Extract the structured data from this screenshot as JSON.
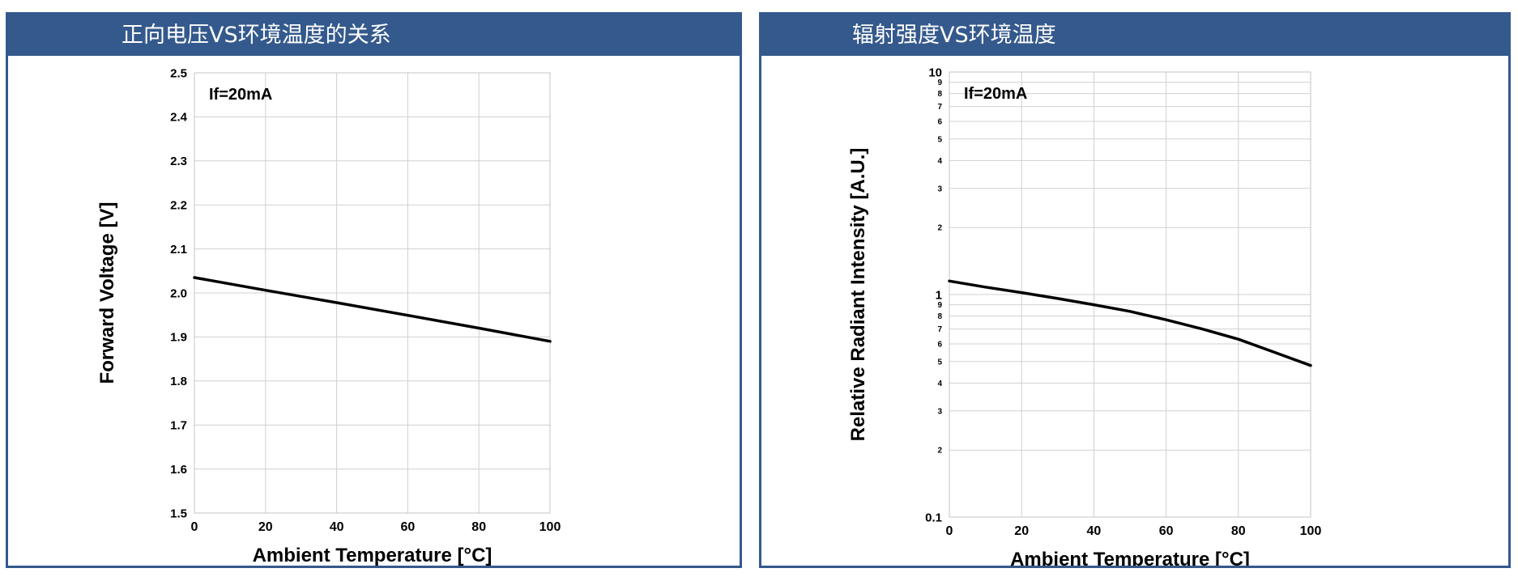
{
  "charts": [
    {
      "header": "正向电压VS环境温度的关系",
      "chart_data": {
        "type": "line",
        "title": "",
        "annotation": "If=20mA",
        "xlabel": "Ambient Temperature [°C]",
        "ylabel": "Forward Voltage [V]",
        "xlim": [
          0,
          100
        ],
        "ylim": [
          1.5,
          2.5
        ],
        "yscale": "linear",
        "grid": true,
        "x_ticks": [
          "0",
          "20",
          "40",
          "60",
          "80",
          "100"
        ],
        "y_ticks": [
          "1.5",
          "1.6",
          "1.7",
          "1.8",
          "1.9",
          "2.0",
          "2.1",
          "2.2",
          "2.3",
          "2.4",
          "2.5"
        ],
        "series": [
          {
            "x": [
              0,
              20,
              40,
              60,
              80,
              100
            ],
            "y": [
              2.035,
              2.006,
              1.978,
              1.949,
              1.92,
              1.89
            ],
            "color": "#000000"
          }
        ]
      }
    },
    {
      "header": "辐射强度VS环境温度",
      "chart_data": {
        "type": "line",
        "title": "",
        "annotation": "If=20mA",
        "xlabel": "Ambient Temperature [°C]",
        "ylabel": "Relative Radiant Intensity [A.U.]",
        "xlim": [
          0,
          100
        ],
        "ylim": [
          0.1,
          10
        ],
        "yscale": "log",
        "grid": true,
        "x_ticks": [
          "0",
          "20",
          "40",
          "60",
          "80",
          "100"
        ],
        "y_ticks": [
          {
            "v": 0.1,
            "t": "0.1",
            "major": true
          },
          {
            "v": 0.2,
            "t": "2"
          },
          {
            "v": 0.3,
            "t": "3"
          },
          {
            "v": 0.4,
            "t": "4"
          },
          {
            "v": 0.5,
            "t": "5"
          },
          {
            "v": 0.6,
            "t": "6"
          },
          {
            "v": 0.7,
            "t": "7"
          },
          {
            "v": 0.8,
            "t": "8"
          },
          {
            "v": 0.9,
            "t": "9"
          },
          {
            "v": 1,
            "t": "1",
            "major": true
          },
          {
            "v": 2,
            "t": "2"
          },
          {
            "v": 3,
            "t": "3"
          },
          {
            "v": 4,
            "t": "4"
          },
          {
            "v": 5,
            "t": "5"
          },
          {
            "v": 6,
            "t": "6"
          },
          {
            "v": 7,
            "t": "7"
          },
          {
            "v": 8,
            "t": "8"
          },
          {
            "v": 9,
            "t": "9"
          },
          {
            "v": 10,
            "t": "10",
            "major": true
          }
        ],
        "series": [
          {
            "x": [
              0,
              10,
              20,
              30,
              40,
              50,
              60,
              70,
              80,
              90,
              100
            ],
            "y": [
              1.15,
              1.08,
              1.02,
              0.96,
              0.9,
              0.84,
              0.77,
              0.7,
              0.63,
              0.55,
              0.48
            ],
            "color": "#000000"
          }
        ]
      }
    }
  ]
}
